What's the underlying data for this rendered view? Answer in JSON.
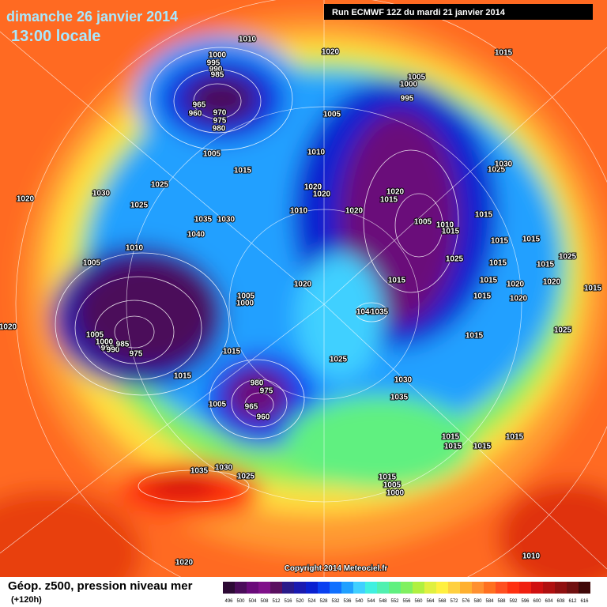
{
  "header": {
    "date": "dimanche 26 janvier 2014",
    "time": "13:00 locale",
    "run": "Run ECMWF 12Z du mardi 21 janvier 2014"
  },
  "map": {
    "copyright": "Copyright 2014 Meteociel.fr",
    "isobar_labels": [
      1010,
      1000,
      995,
      990,
      985,
      965,
      960,
      970,
      975,
      980,
      1020,
      1015,
      1005,
      1000,
      995,
      1005,
      1005,
      1015,
      1010,
      1025,
      1030,
      1025,
      1030,
      1020,
      1025,
      1020,
      1020,
      1020,
      1015,
      1010,
      1020,
      1035,
      1030,
      1040,
      1005,
      1010,
      1015,
      1015,
      1015,
      1015,
      1010,
      1005,
      1025,
      1015,
      1015,
      1025,
      1015,
      1015,
      1020,
      1020,
      1020,
      1005,
      1000,
      1015,
      1015,
      1020,
      1040,
      1035,
      1020,
      1005,
      1000,
      995,
      990,
      985,
      975,
      1015,
      1025,
      1015,
      1025,
      1015,
      1030,
      980,
      975,
      1035,
      1005,
      965,
      960,
      1015,
      1015,
      1015,
      1015,
      1035,
      1030,
      1025,
      1015,
      1005,
      1000,
      1020,
      1010
    ]
  },
  "legend": {
    "title": "Géop. z500, pression niveau mer",
    "lead_time": "(+120h)",
    "scale": [
      496,
      500,
      504,
      508,
      512,
      516,
      520,
      524,
      528,
      532,
      536,
      540,
      544,
      548,
      552,
      556,
      560,
      564,
      568,
      572,
      576,
      580,
      584,
      588,
      592,
      596,
      600,
      604,
      608,
      612,
      616
    ],
    "colors": [
      "#2d0a35",
      "#4b0c5a",
      "#6a0a7a",
      "#80108a",
      "#5a1060",
      "#2a1a8a",
      "#1a1ab0",
      "#0a20d0",
      "#0a40f0",
      "#1070ff",
      "#20a0ff",
      "#40d0ff",
      "#40f0e0",
      "#50f0b0",
      "#60f080",
      "#80f060",
      "#b0f040",
      "#e0f040",
      "#fff040",
      "#ffd040",
      "#ffb030",
      "#ff9030",
      "#ff7020",
      "#ff5020",
      "#ff3010",
      "#f02010",
      "#d01010",
      "#b01010",
      "#901010",
      "#701010",
      "#400808"
    ]
  }
}
